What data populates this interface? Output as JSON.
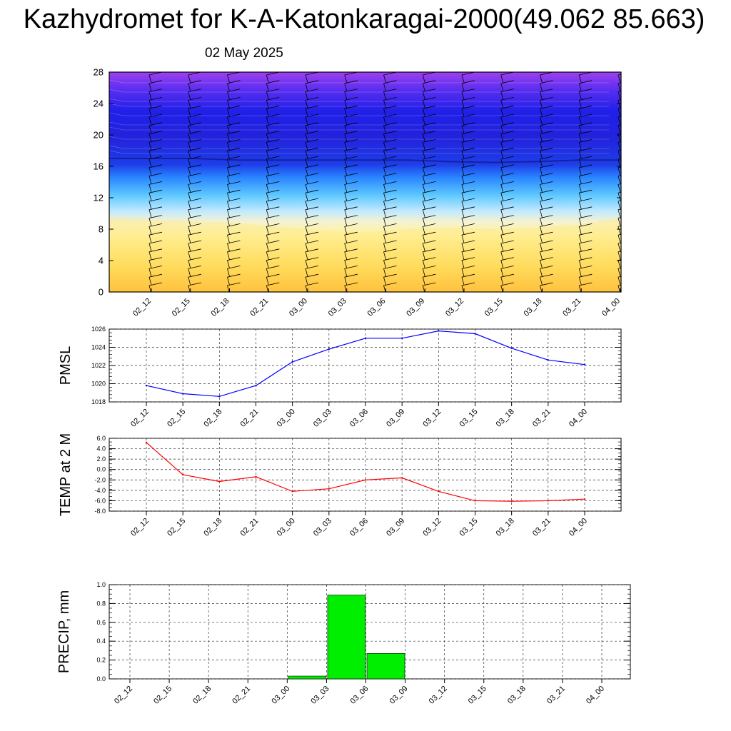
{
  "title": "Kazhydromet for K-A-Katonkaragai-2000(49.062 85.663)",
  "subtitle": "02 May 2025",
  "chart_data": [
    {
      "type": "heatmap",
      "name": "cross-section",
      "x_ticks": [
        "02_12",
        "02_15",
        "02_18",
        "02_21",
        "03_00",
        "03_03",
        "03_06",
        "03_09",
        "03_12",
        "03_15",
        "03_18",
        "03_21",
        "04_00"
      ],
      "y_ticks": [
        "0",
        "4",
        "8",
        "12",
        "16",
        "20",
        "24",
        "28"
      ],
      "ylim": [
        0,
        28
      ],
      "warm_boundary_height": [
        9.5,
        9.2,
        9.0,
        8.8,
        8.3,
        7.8,
        7.6,
        8.0,
        8.2,
        8.0,
        8.2,
        8.6,
        9.4
      ],
      "cold_core_height": [
        17.0,
        17.0,
        17.0,
        16.8,
        16.8,
        16.8,
        16.8,
        16.8,
        16.6,
        16.5,
        16.6,
        16.8,
        16.8
      ],
      "colors": {
        "warm_low": "#ff9d00",
        "warm_high": "#fff0a0",
        "transition": "#6fcaff",
        "cold": "#1a1ae6",
        "top": "#8c3cf0"
      }
    },
    {
      "type": "line",
      "name": "pmsl",
      "ylabel": "PMSL",
      "x": [
        "02_12",
        "02_15",
        "02_18",
        "02_21",
        "03_00",
        "03_03",
        "03_06",
        "03_09",
        "03_12",
        "03_15",
        "03_18",
        "03_21",
        "04_00"
      ],
      "ylim": [
        1018,
        1026
      ],
      "y_ticks": [
        "1018",
        "1020",
        "1022",
        "1024",
        "1026"
      ],
      "values": [
        1019.8,
        1018.9,
        1018.6,
        1019.8,
        1022.4,
        1023.8,
        1025.0,
        1025.0,
        1025.8,
        1025.5,
        1023.9,
        1022.6,
        1022.1
      ],
      "color": "#0000ff",
      "grid": true
    },
    {
      "type": "line",
      "name": "temp",
      "ylabel": "TEMP at 2 M",
      "x": [
        "02_12",
        "02_15",
        "02_18",
        "02_21",
        "03_00",
        "03_03",
        "03_06",
        "03_09",
        "03_12",
        "03_15",
        "03_18",
        "03_21",
        "04_00"
      ],
      "ylim": [
        -8,
        6
      ],
      "y_ticks": [
        "-8.0",
        "-6.0",
        "-4.0",
        "-2.0",
        "0.0",
        "2.0",
        "4.0",
        "6.0"
      ],
      "values": [
        5.2,
        -1.0,
        -2.3,
        -1.4,
        -4.2,
        -3.7,
        -2.0,
        -1.6,
        -4.2,
        -6.0,
        -6.1,
        -6.0,
        -5.7
      ],
      "color": "#ff0000",
      "grid": true
    },
    {
      "type": "bar",
      "name": "precip",
      "ylabel": "PRECIP, mm",
      "categories": [
        "02_12",
        "02_15",
        "02_18",
        "02_21",
        "03_00",
        "03_03",
        "03_06",
        "03_09",
        "03_12",
        "03_15",
        "03_18",
        "03_21",
        "04_00"
      ],
      "ylim": [
        0,
        1.0
      ],
      "y_ticks": [
        "0.0",
        "0.2",
        "0.4",
        "0.6",
        "0.8",
        "1.0"
      ],
      "values": [
        0,
        0,
        0,
        0,
        0.03,
        0.89,
        0.27,
        0,
        0,
        0,
        0,
        0,
        0
      ],
      "color": "#00ee00",
      "grid": true
    }
  ]
}
